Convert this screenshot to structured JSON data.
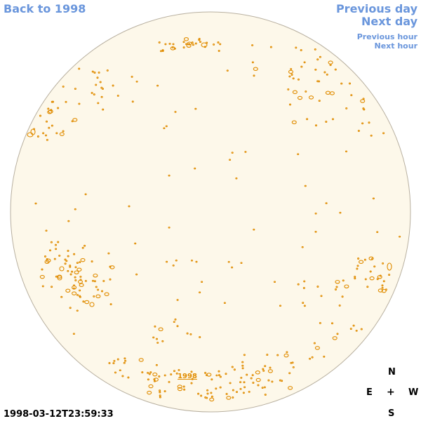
{
  "nav": {
    "back_label": "Back to 1998",
    "prev_day_label": "Previous day",
    "next_day_label": "Next day",
    "prev_hour_label": "Previous hour",
    "next_hour_label": "Next hour"
  },
  "disk": {
    "year_label": "1998",
    "fill_color": "#fdf8ea",
    "limb_color": "#b8b0a0",
    "contour_color": "#e08c00"
  },
  "compass": {
    "north": "N",
    "east": "E",
    "center": "+",
    "west": "W",
    "south": "S"
  },
  "timestamp": "1998-03-12T23:59:33"
}
